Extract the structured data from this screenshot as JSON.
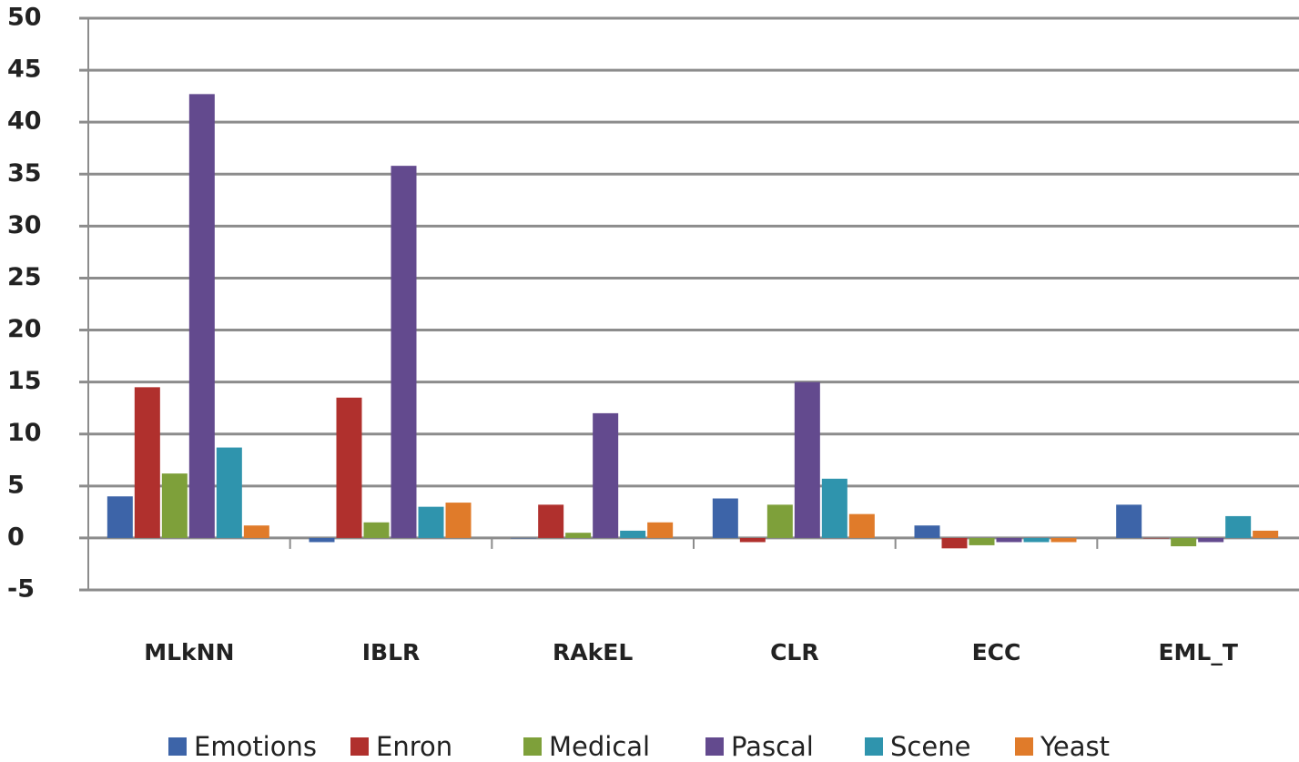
{
  "chart_data": {
    "type": "bar",
    "categories": [
      "MLkNN",
      "IBLR",
      "RAkEL",
      "CLR",
      "ECC",
      "EML_T"
    ],
    "series": [
      {
        "name": "Emotions",
        "color": "#3d64a8",
        "values": [
          4,
          -0.4,
          0,
          3.8,
          1.2,
          3.2
        ]
      },
      {
        "name": "Enron",
        "color": "#b0302d",
        "values": [
          14.5,
          13.5,
          3.2,
          -0.4,
          -1,
          0
        ]
      },
      {
        "name": "Medical",
        "color": "#7ea03a",
        "values": [
          6.2,
          1.5,
          0.5,
          3.2,
          -0.7,
          -0.8
        ]
      },
      {
        "name": "Pascal",
        "color": "#634a8e",
        "values": [
          42.7,
          35.8,
          12,
          15,
          -0.4,
          -0.4
        ]
      },
      {
        "name": "Scene",
        "color": "#2f94ad",
        "values": [
          8.7,
          3,
          0.7,
          5.7,
          -0.4,
          2.1
        ]
      },
      {
        "name": "Yeast",
        "color": "#e07b2a",
        "values": [
          1.2,
          3.4,
          1.5,
          2.3,
          -0.4,
          0.7
        ]
      }
    ],
    "ylim": [
      -5,
      50
    ],
    "yticks": [
      -5,
      0,
      5,
      10,
      15,
      20,
      25,
      30,
      35,
      40,
      45,
      50
    ],
    "grid": true,
    "legend": "bottom"
  }
}
